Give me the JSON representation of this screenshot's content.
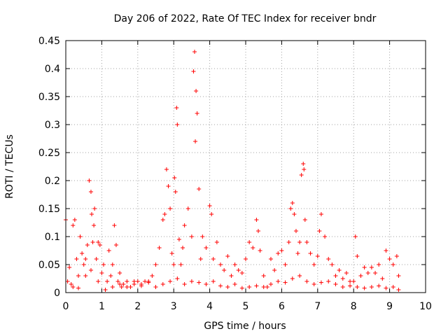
{
  "chart_data": {
    "type": "scatter",
    "title": "Day 206 of 2022, Rate Of TEC Index for receiver bndr",
    "xlabel": "GPS time / hours",
    "ylabel": "ROTI / TECUs",
    "xlim": [
      0,
      10
    ],
    "ylim": [
      0,
      0.45
    ],
    "x_ticks": [
      "0",
      "1",
      "2",
      "3",
      "4",
      "5",
      "6",
      "7",
      "8",
      "9",
      "10"
    ],
    "y_ticks": [
      "0",
      "0.05",
      "0.1",
      "0.15",
      "0.2",
      "0.25",
      "0.3",
      "0.35",
      "0.4",
      "0.45"
    ],
    "grid": true,
    "marker": "plus",
    "color": "#ff0000",
    "series": [
      {
        "x": [
          0.0,
          0.05,
          0.1,
          0.15,
          0.2,
          0.25,
          0.3,
          0.35,
          0.4,
          0.45,
          0.5,
          0.55,
          0.6,
          0.65,
          0.7,
          0.72,
          0.75,
          0.78,
          0.8,
          0.85,
          0.9,
          0.95,
          1.0,
          1.05,
          1.1,
          1.15,
          1.2,
          1.25,
          1.3,
          1.35,
          1.4,
          1.45,
          1.5,
          1.55,
          1.6,
          1.7,
          1.8,
          1.9,
          2.0,
          2.1,
          2.2,
          2.3,
          2.4,
          2.5,
          2.6,
          2.7,
          2.75,
          2.8,
          2.85,
          2.9,
          2.95,
          3.0,
          3.02,
          3.05,
          3.08,
          3.1,
          3.15,
          3.2,
          3.25,
          3.3,
          3.4,
          3.5,
          3.55,
          3.58,
          3.6,
          3.62,
          3.65,
          3.7,
          3.75,
          3.8,
          3.9,
          4.0,
          4.05,
          4.1,
          4.2,
          4.3,
          4.4,
          4.5,
          4.6,
          4.7,
          4.8,
          4.9,
          5.0,
          5.1,
          5.2,
          5.3,
          5.35,
          5.4,
          5.5,
          5.6,
          5.7,
          5.8,
          5.9,
          6.0,
          6.1,
          6.2,
          6.25,
          6.3,
          6.35,
          6.4,
          6.45,
          6.5,
          6.55,
          6.6,
          6.62,
          6.65,
          6.7,
          6.8,
          6.9,
          7.0,
          7.05,
          7.1,
          7.2,
          7.3,
          7.4,
          7.5,
          7.6,
          7.7,
          7.8,
          7.9,
          8.0,
          8.05,
          8.1,
          8.2,
          8.3,
          8.4,
          8.5,
          8.6,
          8.7,
          8.8,
          8.9,
          9.0,
          9.1,
          9.2,
          9.25
        ],
        "y": [
          0.13,
          0.02,
          0.045,
          0.015,
          0.12,
          0.13,
          0.06,
          0.03,
          0.1,
          0.07,
          0.05,
          0.06,
          0.085,
          0.2,
          0.18,
          0.14,
          0.09,
          0.12,
          0.15,
          0.06,
          0.09,
          0.085,
          0.035,
          0.05,
          0.005,
          0.02,
          0.075,
          0.03,
          0.05,
          0.12,
          0.085,
          0.02,
          0.035,
          0.01,
          0.015,
          0.02,
          0.01,
          0.015,
          0.02,
          0.015,
          0.02,
          0.02,
          0.03,
          0.05,
          0.08,
          0.13,
          0.14,
          0.22,
          0.19,
          0.15,
          0.07,
          0.05,
          0.205,
          0.18,
          0.33,
          0.3,
          0.095,
          0.05,
          0.08,
          0.12,
          0.15,
          0.1,
          0.395,
          0.43,
          0.27,
          0.36,
          0.32,
          0.185,
          0.06,
          0.1,
          0.08,
          0.155,
          0.14,
          0.06,
          0.09,
          0.05,
          0.04,
          0.065,
          0.03,
          0.05,
          0.04,
          0.035,
          0.06,
          0.09,
          0.08,
          0.13,
          0.11,
          0.075,
          0.03,
          0.01,
          0.06,
          0.04,
          0.07,
          0.075,
          0.05,
          0.09,
          0.15,
          0.16,
          0.14,
          0.11,
          0.07,
          0.09,
          0.21,
          0.23,
          0.22,
          0.13,
          0.09,
          0.07,
          0.05,
          0.065,
          0.11,
          0.14,
          0.1,
          0.06,
          0.05,
          0.03,
          0.04,
          0.025,
          0.035,
          0.02,
          0.02,
          0.1,
          0.065,
          0.03,
          0.045,
          0.035,
          0.045,
          0.035,
          0.05,
          0.025,
          0.075,
          0.06,
          0.05,
          0.065,
          0.03
        ]
      },
      {
        "x": [
          0.2,
          0.35,
          0.55,
          0.7,
          0.9,
          1.1,
          1.3,
          1.5,
          1.7,
          1.9,
          2.1,
          2.3,
          2.5,
          2.7,
          2.9,
          3.1,
          3.3,
          3.5,
          3.7,
          3.9,
          4.1,
          4.3,
          4.5,
          4.7,
          4.9,
          5.1,
          5.3,
          5.5,
          5.7,
          5.9,
          6.1,
          6.3,
          6.5,
          6.7,
          6.9,
          7.1,
          7.3,
          7.5,
          7.7,
          7.9,
          8.1,
          8.3,
          8.5,
          8.7,
          8.9,
          9.1,
          9.25
        ],
        "y": [
          0.01,
          0.008,
          0.03,
          0.04,
          0.02,
          0.005,
          0.01,
          0.015,
          0.01,
          0.02,
          0.012,
          0.018,
          0.01,
          0.015,
          0.02,
          0.025,
          0.015,
          0.02,
          0.018,
          0.015,
          0.02,
          0.012,
          0.01,
          0.015,
          0.008,
          0.01,
          0.012,
          0.01,
          0.015,
          0.02,
          0.018,
          0.025,
          0.03,
          0.02,
          0.015,
          0.018,
          0.02,
          0.015,
          0.01,
          0.012,
          0.01,
          0.008,
          0.01,
          0.012,
          0.008,
          0.01,
          0.005
        ]
      }
    ]
  }
}
